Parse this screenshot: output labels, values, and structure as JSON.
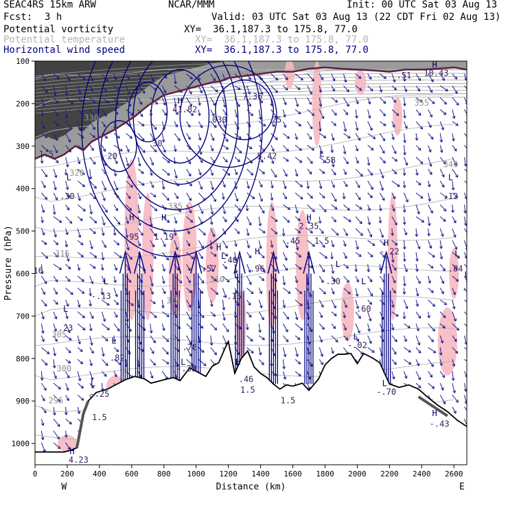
{
  "header": {
    "model": "SEAC4RS 15km ARW",
    "center": "NCAR/MMM",
    "init": "Init: 00 UTC Sat 03 Aug 13",
    "fcst_label": "Fcst:",
    "fcst_value": "3 h",
    "valid": "Valid: 03 UTC Sat 03 Aug 13 (22 CDT Fri 02 Aug 13)"
  },
  "fields": [
    {
      "name": "Potential vorticity",
      "xy": "XY=  36.1,187.3 to 175.8, 77.0",
      "color": "#000000"
    },
    {
      "name": "Potential temperature",
      "xy": "XY=  36.1,187.3 to 175.8, 77.0",
      "color": "#b4b4b4"
    },
    {
      "name": "Horizontal wind speed",
      "xy": "XY=  36.1,187.3 to 175.8, 77.0",
      "color": "#00007f"
    }
  ],
  "chart_data": {
    "type": "cross-section",
    "xlabel": "Distance (km)",
    "ylabel": "Pressure (hPa)",
    "xlim": [
      0,
      2680
    ],
    "ylim": [
      1050,
      100
    ],
    "x_ticks": [
      0,
      200,
      400,
      600,
      800,
      1000,
      1200,
      1400,
      1600,
      1800,
      2000,
      2200,
      2400,
      2600
    ],
    "y_ticks": [
      100,
      200,
      300,
      400,
      500,
      600,
      700,
      800,
      900,
      1000
    ],
    "west_label": "W",
    "east_label": "E",
    "terrain_pressure": {
      "x": [
        0,
        180,
        230,
        260,
        280,
        300,
        330,
        380,
        450,
        500,
        560,
        620,
        680,
        720,
        780,
        820,
        860,
        900,
        960,
        1000,
        1060,
        1100,
        1140,
        1180,
        1200,
        1240,
        1280,
        1320,
        1360,
        1400,
        1440,
        1480,
        1520,
        1560,
        1600,
        1660,
        1700,
        1760,
        1800,
        1840,
        1880,
        1920,
        1960,
        2000,
        2040,
        2100,
        2140,
        2200,
        2260,
        2320,
        2380,
        2440,
        2500,
        2560,
        2620,
        2680
      ],
      "p": [
        1020,
        1020,
        1015,
        1010,
        970,
        930,
        900,
        880,
        872,
        862,
        850,
        842,
        848,
        858,
        852,
        848,
        845,
        852,
        822,
        830,
        842,
        818,
        810,
        775,
        760,
        835,
        800,
        782,
        820,
        835,
        845,
        860,
        872,
        862,
        865,
        858,
        875,
        848,
        815,
        800,
        790,
        790,
        788,
        812,
        788,
        800,
        810,
        860,
        868,
        862,
        872,
        892,
        910,
        925,
        945,
        960
      ]
    },
    "tropopause_pv": {
      "x": [
        0,
        60,
        120,
        180,
        250,
        300,
        350,
        400,
        450,
        500,
        560,
        620,
        700,
        800,
        900,
        1000,
        1100,
        1150,
        1200,
        1300,
        1400,
        1500,
        1600,
        1700,
        1800,
        1900,
        2000,
        2100,
        2200,
        2300,
        2400,
        2500,
        2600,
        2680
      ],
      "p": [
        330,
        320,
        330,
        320,
        300,
        310,
        290,
        280,
        270,
        260,
        245,
        230,
        205,
        180,
        170,
        160,
        150,
        148,
        140,
        135,
        130,
        125,
        125,
        118,
        115,
        118,
        120,
        122,
        125,
        120,
        120,
        118,
        115,
        120
      ]
    },
    "theta_isentrope_labels": [
      {
        "text": "330",
        "x": 350,
        "p": 240
      },
      {
        "text": "320",
        "x": 260,
        "p": 370
      },
      {
        "text": "325",
        "x": 870,
        "p": 448
      },
      {
        "text": "315",
        "x": 170,
        "p": 560
      },
      {
        "text": "315",
        "x": 860,
        "p": 670
      },
      {
        "text": "310",
        "x": 1130,
        "p": 620
      },
      {
        "text": "305",
        "x": 150,
        "p": 750
      },
      {
        "text": "300",
        "x": 180,
        "p": 830
      },
      {
        "text": "295",
        "x": 130,
        "p": 905
      },
      {
        "text": "355",
        "x": 2400,
        "p": 205
      },
      {
        "text": "340",
        "x": 2580,
        "p": 350
      }
    ],
    "pv_labels": [
      {
        "text": "H",
        "x": 900,
        "p": 200
      },
      {
        "text": "41.82",
        "x": 930,
        "p": 220
      },
      {
        "text": "H",
        "x": 2480,
        "p": 115
      },
      {
        "text": "10.43",
        "x": 2490,
        "p": 135
      },
      {
        "text": ".51",
        "x": 2290,
        "p": 140
      },
      {
        "text": "7.36",
        "x": 1350,
        "p": 190
      },
      {
        "text": ".030",
        "x": 1130,
        "p": 245
      },
      {
        "text": "25",
        "x": 1500,
        "p": 245
      },
      {
        "text": "30",
        "x": 760,
        "p": 300
      },
      {
        "text": "1.5",
        "x": 70,
        "p": 325
      },
      {
        "text": "20",
        "x": 480,
        "p": 330
      },
      {
        "text": "5.42",
        "x": 1440,
        "p": 330
      },
      {
        "text": "L",
        "x": 1780,
        "p": 325
      },
      {
        "text": ".58",
        "x": 1820,
        "p": 340
      },
      {
        "text": "L",
        "x": 210,
        "p": 380
      },
      {
        "text": ".30",
        "x": 200,
        "p": 425
      },
      {
        "text": "L",
        "x": 2580,
        "p": 380
      },
      {
        "text": ".12",
        "x": 2580,
        "p": 425
      },
      {
        "text": "H",
        "x": 600,
        "p": 475
      },
      {
        "text": ".95",
        "x": 600,
        "p": 520
      },
      {
        "text": "H",
        "x": 800,
        "p": 475
      },
      {
        "text": "1.19",
        "x": 800,
        "p": 520
      },
      {
        "text": "H",
        "x": 1700,
        "p": 475
      },
      {
        "text": "2.35",
        "x": 1700,
        "p": 495
      },
      {
        "text": ".45",
        "x": 1600,
        "p": 530
      },
      {
        "text": "1.5",
        "x": 1780,
        "p": 530
      },
      {
        "text": "H",
        "x": 1140,
        "p": 545
      },
      {
        "text": "L",
        "x": 1170,
        "p": 565
      },
      {
        "text": ".40",
        "x": 1210,
        "p": 575
      },
      {
        "text": ".57",
        "x": 1080,
        "p": 595
      },
      {
        "text": "H",
        "x": 1380,
        "p": 555
      },
      {
        "text": ".96",
        "x": 1380,
        "p": 595
      },
      {
        "text": "H",
        "x": 2180,
        "p": 535
      },
      {
        "text": "-.22",
        "x": 2200,
        "p": 555
      },
      {
        "text": "L",
        "x": 2620,
        "p": 560
      },
      {
        "text": ".84",
        "x": 2610,
        "p": 595
      },
      {
        "text": "L",
        "x": 1880,
        "p": 585
      },
      {
        "text": ".30",
        "x": 1850,
        "p": 625
      },
      {
        "text": "16",
        "x": 20,
        "p": 600
      },
      {
        "text": "L",
        "x": 2680,
        "p": 610
      },
      {
        "text": ".7",
        "x": 2680,
        "p": 640
      },
      {
        "text": "L",
        "x": 1250,
        "p": 610
      },
      {
        "text": "-.16",
        "x": 1220,
        "p": 660
      },
      {
        "text": "L",
        "x": 440,
        "p": 625
      },
      {
        "text": "-.13",
        "x": 410,
        "p": 660
      },
      {
        "text": "L",
        "x": 2040,
        "p": 625
      },
      {
        "text": ".60",
        "x": 2040,
        "p": 690
      },
      {
        "text": "L",
        "x": 190,
        "p": 690
      },
      {
        "text": ".23",
        "x": 190,
        "p": 735
      },
      {
        "text": "L",
        "x": 1990,
        "p": 755
      },
      {
        "text": "-.02",
        "x": 2000,
        "p": 775
      },
      {
        "text": "L",
        "x": 490,
        "p": 765
      },
      {
        "text": ".82",
        "x": 510,
        "p": 805
      },
      {
        "text": ".78",
        "x": 960,
        "p": 780
      },
      {
        "text": "L",
        "x": 920,
        "p": 815
      },
      {
        "text": "-.38",
        "x": 940,
        "p": 830
      },
      {
        "text": "H",
        "x": 1260,
        "p": 815
      },
      {
        "text": ".46",
        "x": 1310,
        "p": 855
      },
      {
        "text": "1.5",
        "x": 1320,
        "p": 880
      },
      {
        "text": "L",
        "x": 360,
        "p": 865
      },
      {
        "text": "-.25",
        "x": 400,
        "p": 890
      },
      {
        "text": "L",
        "x": 2170,
        "p": 865
      },
      {
        "text": "-.70",
        "x": 2180,
        "p": 885
      },
      {
        "text": "1.5",
        "x": 1570,
        "p": 905
      },
      {
        "text": "1.5",
        "x": 400,
        "p": 945
      },
      {
        "text": "H",
        "x": 2480,
        "p": 935
      },
      {
        "text": "-.43",
        "x": 2510,
        "p": 960
      },
      {
        "text": "H",
        "x": 230,
        "p": 1025
      },
      {
        "text": "4.23",
        "x": 270,
        "p": 1045
      }
    ],
    "wind_speed_jet_core": {
      "x_range": [
        400,
        1700
      ],
      "p_range": [
        120,
        460
      ],
      "note": "dark blue isotachs"
    },
    "updrafts_km": [
      560,
      650,
      870,
      1000,
      1270,
      1480,
      1700,
      2180
    ]
  },
  "colors": {
    "pv_line": "#000000",
    "pv_fill": "#505050",
    "tropopause": "#5a2040",
    "theta": "#b4b4b4",
    "isotach": "#00007f",
    "arrow": "#1a1a8c",
    "pink_shading": "#f6b8c0"
  }
}
